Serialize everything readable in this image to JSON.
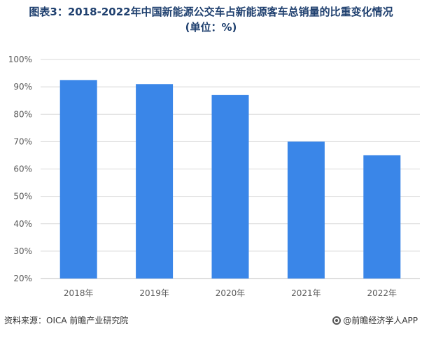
{
  "header": {
    "title_line1": "图表3：2018-2022年中国新能源公交车占新能源客车总销量的比重变化情况",
    "title_line2": "(单位：%)"
  },
  "footer": {
    "source": "资料来源：OICA 前瞻产业研究院",
    "brand": "@前瞻经济学人APP"
  },
  "colors": {
    "bar": "#3a86e8",
    "grid": "#d9d9d9",
    "axis_text": "#595959",
    "title": "#1e3f6e"
  },
  "chart_data": {
    "type": "bar",
    "categories": [
      "2018年",
      "2019年",
      "2020年",
      "2021年",
      "2022年"
    ],
    "values": [
      92.5,
      91,
      87,
      70,
      65
    ],
    "title": "2018-2022年中国新能源公交车占新能源客车总销量的比重变化情况",
    "xlabel": "",
    "ylabel": "",
    "ylim": [
      20,
      100
    ],
    "yticks": [
      20,
      30,
      40,
      50,
      60,
      70,
      80,
      90,
      100
    ],
    "ytick_labels": [
      "20%",
      "30%",
      "40%",
      "50%",
      "60%",
      "70%",
      "80%",
      "90%",
      "100%"
    ],
    "grid": true,
    "legend": "none"
  }
}
